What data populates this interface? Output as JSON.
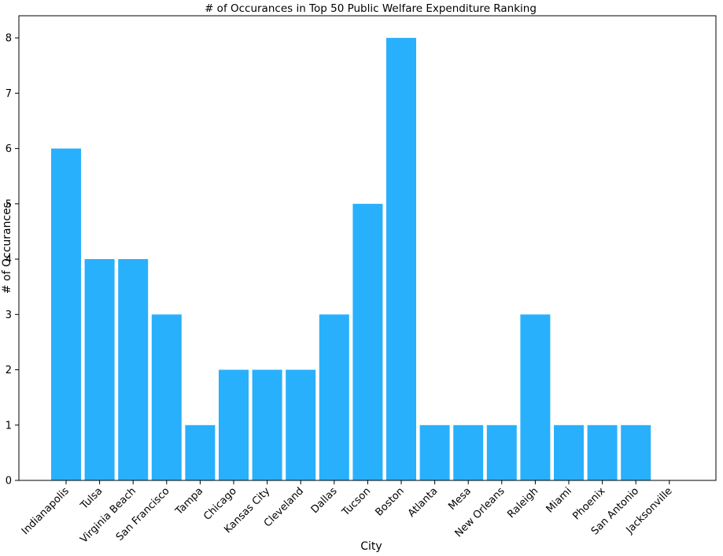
{
  "chart_data": {
    "type": "bar",
    "title": "# of Occurances in Top 50 Public Welfare Expenditure Ranking",
    "xlabel": "City",
    "ylabel": "# of Occurances",
    "categories": [
      "Indianapolis",
      "Tulsa",
      "Virginia Beach",
      "San Francisco",
      "Tampa",
      "Chicago",
      "Kansas City",
      "Cleveland",
      "Dallas",
      "Tucson",
      "Boston",
      "Atlanta",
      "Mesa",
      "New Orleans",
      "Raleigh",
      "Miami",
      "Phoenix",
      "San Antonio",
      "Jacksonville"
    ],
    "values": [
      6,
      4,
      4,
      3,
      1,
      2,
      2,
      2,
      3,
      5,
      8,
      1,
      1,
      1,
      3,
      1,
      1,
      1,
      0
    ],
    "ylim": [
      0,
      8.4
    ],
    "yticks": [
      "0",
      "1",
      "2",
      "3",
      "4",
      "5",
      "6",
      "7",
      "8"
    ],
    "bar_color": "#29b0fc",
    "grid": false,
    "legend": "none"
  }
}
